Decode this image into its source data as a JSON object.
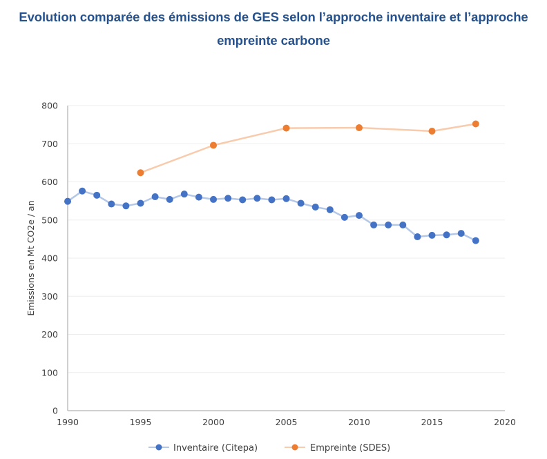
{
  "title": {
    "line1": "Evolution comparée des émissions de GES selon l’approche inventaire et l’approche",
    "line2": "empreinte carbone"
  },
  "colors": {
    "title": "#25528F",
    "inventaire_marker": "#4472C4",
    "inventaire_line": "#B4C7E7",
    "empreinte_marker": "#ED7D31",
    "empreinte_line": "#F8CBAD",
    "axis": "#BFBFBF",
    "grid": "#EDEDED",
    "text": "#404040"
  },
  "chart_data": {
    "type": "line",
    "title": "Evolution comparée des émissions de GES selon l’approche inventaire et l’approche empreinte carbone",
    "xlabel": "",
    "ylabel": "Emissions en Mt CO2e  / an",
    "xlim": [
      1990,
      2020
    ],
    "ylim": [
      0,
      800
    ],
    "xticks": [
      1990,
      1995,
      2000,
      2005,
      2010,
      2015,
      2020
    ],
    "yticks": [
      0,
      100,
      200,
      300,
      400,
      500,
      600,
      700,
      800
    ],
    "grid": true,
    "legend_position": "bottom",
    "series": [
      {
        "name": "Inventaire (Citepa)",
        "x": [
          1990,
          1991,
          1992,
          1993,
          1994,
          1995,
          1996,
          1997,
          1998,
          1999,
          2000,
          2001,
          2002,
          2003,
          2004,
          2005,
          2006,
          2007,
          2008,
          2009,
          2010,
          2011,
          2012,
          2013,
          2014,
          2015,
          2016,
          2017,
          2018
        ],
        "values": [
          549,
          576,
          565,
          542,
          537,
          544,
          561,
          554,
          568,
          560,
          554,
          557,
          553,
          557,
          553,
          556,
          544,
          534,
          527,
          507,
          512,
          487,
          487,
          487,
          456,
          460,
          461,
          465,
          446
        ]
      },
      {
        "name": "Empreinte (SDES)",
        "x": [
          1995,
          2000,
          2005,
          2010,
          2015,
          2018
        ],
        "values": [
          624,
          696,
          741,
          742,
          733,
          752
        ]
      }
    ]
  }
}
